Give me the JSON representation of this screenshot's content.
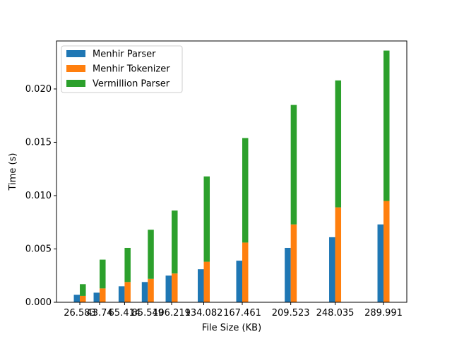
{
  "chart_data": {
    "type": "bar",
    "title": "",
    "xlabel": "File Size (KB)",
    "ylabel": "Time (s)",
    "x": [
      26.583,
      43.74,
      65.414,
      85.549,
      106.219,
      134.082,
      167.461,
      209.523,
      248.035,
      289.991
    ],
    "x_tick_labels": [
      "26.583",
      "43.74",
      "65.414",
      "85.549",
      "106.219",
      "134.082",
      "167.461",
      "209.523",
      "248.035",
      "289.991"
    ],
    "ylim": [
      0,
      0.0245
    ],
    "y_ticks": [
      0,
      0.005,
      0.01,
      0.015,
      0.02
    ],
    "y_tick_labels": [
      "0.000",
      "0.005",
      "0.010",
      "0.015",
      "0.020"
    ],
    "grid": false,
    "legend_position": "top-left",
    "series": [
      {
        "name": "Menhir Parser",
        "color": "#1f77b4",
        "placement": "left",
        "values": [
          0.0007,
          0.0009,
          0.0015,
          0.0019,
          0.0025,
          0.0031,
          0.0039,
          0.0051,
          0.0061,
          0.0073
        ]
      },
      {
        "name": "Menhir Tokenizer",
        "color": "#ff7f0e",
        "placement": "right",
        "values": [
          0.0006,
          0.0013,
          0.0019,
          0.0022,
          0.0027,
          0.0038,
          0.0056,
          0.0073,
          0.0089,
          0.0095
        ]
      },
      {
        "name": "Vermillion Parser",
        "color": "#2ca02c",
        "placement": "right-stacked-on-previous",
        "values": [
          0.0011,
          0.0027,
          0.0032,
          0.0046,
          0.0059,
          0.008,
          0.0098,
          0.0112,
          0.0119,
          0.0141
        ]
      }
    ]
  }
}
